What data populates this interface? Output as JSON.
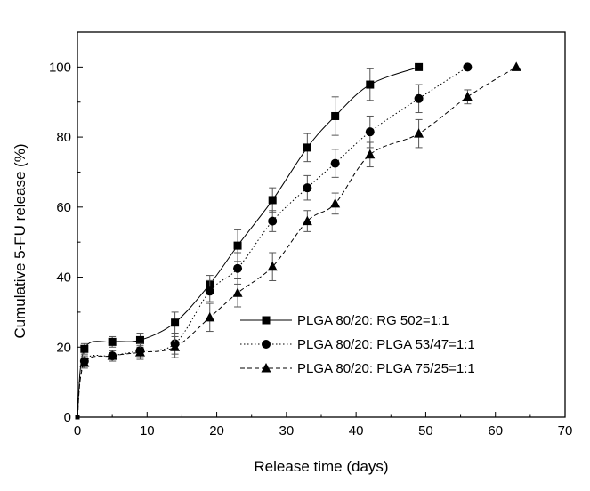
{
  "chart_data": {
    "type": "line",
    "title": "",
    "xlabel": "Release time (days)",
    "ylabel": "Cumulative 5-FU release (%)",
    "xlim": [
      0,
      70
    ],
    "ylim": [
      0,
      110
    ],
    "xticks": [
      0,
      10,
      20,
      30,
      40,
      50,
      60,
      70
    ],
    "yticks": [
      0,
      20,
      40,
      60,
      80,
      100
    ],
    "grid": false,
    "legend_position": "lower-right",
    "series": [
      {
        "name": "PLGA 80/20: RG 502=1:1",
        "marker": "square",
        "line_style": "solid",
        "x": [
          0,
          1,
          5,
          9,
          14,
          19,
          23,
          28,
          33,
          37,
          42,
          49
        ],
        "y": [
          0,
          19.5,
          21.5,
          22,
          27,
          38,
          49,
          62,
          77,
          86,
          95,
          100
        ],
        "error": [
          0,
          1.5,
          1.5,
          2,
          3,
          2.5,
          4.5,
          3.5,
          4,
          5.5,
          4.5,
          0
        ]
      },
      {
        "name": "PLGA 80/20: PLGA 53/47=1:1",
        "marker": "circle",
        "line_style": "dotted",
        "x": [
          0,
          1,
          5,
          9,
          14,
          19,
          23,
          28,
          33,
          37,
          42,
          49,
          56
        ],
        "y": [
          0,
          16,
          17.5,
          19,
          21,
          36,
          42.5,
          56,
          65.5,
          72.5,
          81.5,
          91,
          100
        ],
        "error": [
          0,
          1.5,
          1.5,
          2,
          3,
          3,
          4.5,
          3,
          3.5,
          4,
          4.5,
          4,
          0
        ]
      },
      {
        "name": "PLGA 80/20: PLGA 75/25=1:1",
        "marker": "triangle",
        "line_style": "dashed",
        "x": [
          0,
          1,
          5,
          9,
          14,
          19,
          23,
          28,
          33,
          37,
          42,
          49,
          56,
          63
        ],
        "y": [
          0,
          15.5,
          17.5,
          18.5,
          20,
          28.5,
          35.5,
          43,
          56,
          61,
          75,
          81,
          91.5,
          100
        ],
        "error": [
          0,
          1.5,
          1.5,
          2,
          3,
          4,
          4,
          4,
          3,
          3,
          3.5,
          4,
          2,
          0
        ]
      }
    ]
  }
}
